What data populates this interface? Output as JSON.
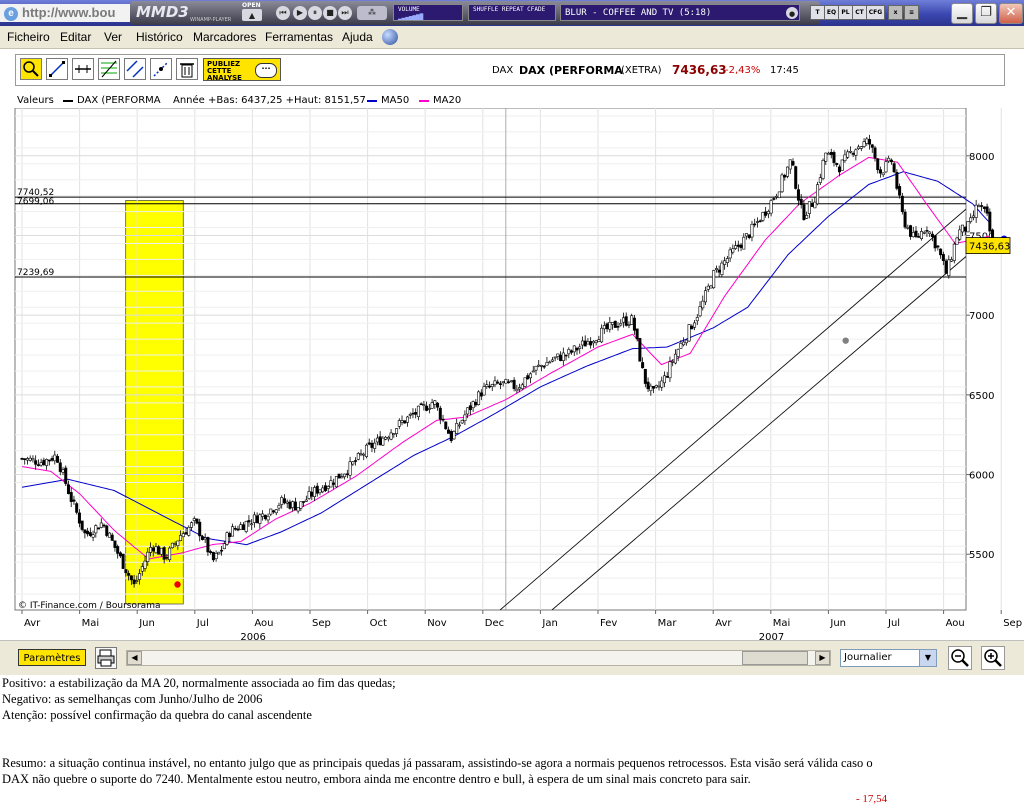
{
  "window": {
    "address": "http://www.bou"
  },
  "player": {
    "logo": "MMD3",
    "sublabel": "WINAMP-PLAYER",
    "open_label": "OPEN",
    "volume_label": "VOLUME",
    "modes_label": "SHUFFLE REPEAT CFADE",
    "track": "BLUR - COFFEE AND TV (5:18)",
    "small_buttons": [
      "T",
      "EQ",
      "PL",
      "CT",
      "CFG"
    ],
    "colors": {
      "display_bg": "#2b1a70",
      "frame": "#3a3a48"
    }
  },
  "menu": {
    "items": [
      "Ficheiro",
      "Editar",
      "Ver",
      "Histórico",
      "Marcadores",
      "Ferramentas",
      "Ajuda"
    ]
  },
  "toolbar": {
    "tool_icons": [
      "zoom-select-icon",
      "trend-line-icon",
      "horizontal-line-icon",
      "fibonacci-icon",
      "channel-icon",
      "parallel-line-icon",
      "trash-icon"
    ],
    "publiez_label": "PUBLIEZ CETTE ANALYSE",
    "ticker_code": "DAX",
    "ticker_name": "DAX (PERFORMA",
    "exchange": "(XETRA)",
    "price": "7436,63",
    "change": "-2,43%",
    "time": "17:45",
    "colors": {
      "price": "#8b0000",
      "change": "#cc0000",
      "publiez": "#ffe400"
    }
  },
  "legend": {
    "valeurs_label": "Valeurs",
    "main_series": "DAX (PERFORMA",
    "stats": "Année +Bas: 6437,25 +Haut: 8151,57",
    "ma50": "MA50",
    "ma20": "MA20",
    "colors": {
      "main": "#000000",
      "ma50": "#0000cc",
      "ma20": "#ff00cc"
    }
  },
  "chart_data": {
    "type": "candlestick",
    "instrument": "DAX (PERFORMA",
    "y_ticks": [
      "5500",
      "6000",
      "6500",
      "7000",
      "7500",
      "8000"
    ],
    "ylim": [
      5150,
      8300
    ],
    "x_ticks": [
      "Avr",
      "Mai",
      "Jun",
      "Jul",
      "Aou",
      "Sep",
      "Oct",
      "Nov",
      "Dec",
      "Jan",
      "Fev",
      "Mar",
      "Avr",
      "Mai",
      "Jun",
      "Jul",
      "Aou",
      "Sep"
    ],
    "year_labels": [
      {
        "label": "2006",
        "month_index": 4
      },
      {
        "label": "2007",
        "month_index": 13
      }
    ],
    "price_path": [
      {
        "m": 0.0,
        "v": 6100
      },
      {
        "m": 0.35,
        "v": 6080
      },
      {
        "m": 0.6,
        "v": 6120
      },
      {
        "m": 0.85,
        "v": 5850
      },
      {
        "m": 1.1,
        "v": 5620
      },
      {
        "m": 1.4,
        "v": 5700
      },
      {
        "m": 1.7,
        "v": 5480
      },
      {
        "m": 1.95,
        "v": 5300
      },
      {
        "m": 2.25,
        "v": 5560
      },
      {
        "m": 2.5,
        "v": 5480
      },
      {
        "m": 2.75,
        "v": 5620
      },
      {
        "m": 3.0,
        "v": 5700
      },
      {
        "m": 3.2,
        "v": 5560
      },
      {
        "m": 3.3,
        "v": 5450
      },
      {
        "m": 3.45,
        "v": 5520
      },
      {
        "m": 3.6,
        "v": 5640
      },
      {
        "m": 3.9,
        "v": 5700
      },
      {
        "m": 4.2,
        "v": 5750
      },
      {
        "m": 4.5,
        "v": 5830
      },
      {
        "m": 4.8,
        "v": 5800
      },
      {
        "m": 5.1,
        "v": 5900
      },
      {
        "m": 5.4,
        "v": 5960
      },
      {
        "m": 5.7,
        "v": 6050
      },
      {
        "m": 6.0,
        "v": 6160
      },
      {
        "m": 6.3,
        "v": 6240
      },
      {
        "m": 6.6,
        "v": 6330
      },
      {
        "m": 6.9,
        "v": 6400
      },
      {
        "m": 7.15,
        "v": 6460
      },
      {
        "m": 7.45,
        "v": 6230
      },
      {
        "m": 7.7,
        "v": 6380
      },
      {
        "m": 8.0,
        "v": 6530
      },
      {
        "m": 8.3,
        "v": 6570
      },
      {
        "m": 8.6,
        "v": 6550
      },
      {
        "m": 8.9,
        "v": 6660
      },
      {
        "m": 9.2,
        "v": 6720
      },
      {
        "m": 9.5,
        "v": 6760
      },
      {
        "m": 9.8,
        "v": 6830
      },
      {
        "m": 10.1,
        "v": 6900
      },
      {
        "m": 10.4,
        "v": 6960
      },
      {
        "m": 10.6,
        "v": 6970
      },
      {
        "m": 10.8,
        "v": 6600
      },
      {
        "m": 10.95,
        "v": 6500
      },
      {
        "m": 11.15,
        "v": 6600
      },
      {
        "m": 11.35,
        "v": 6760
      },
      {
        "m": 11.6,
        "v": 6920
      },
      {
        "m": 11.8,
        "v": 7060
      },
      {
        "m": 12.0,
        "v": 7250
      },
      {
        "m": 12.3,
        "v": 7380
      },
      {
        "m": 12.6,
        "v": 7500
      },
      {
        "m": 12.9,
        "v": 7650
      },
      {
        "m": 13.1,
        "v": 7770
      },
      {
        "m": 13.35,
        "v": 7970
      },
      {
        "m": 13.55,
        "v": 7620
      },
      {
        "m": 13.75,
        "v": 7720
      },
      {
        "m": 13.95,
        "v": 8020
      },
      {
        "m": 14.2,
        "v": 7930
      },
      {
        "m": 14.45,
        "v": 8050
      },
      {
        "m": 14.7,
        "v": 8090
      },
      {
        "m": 14.9,
        "v": 7900
      },
      {
        "m": 15.1,
        "v": 7970
      },
      {
        "m": 15.3,
        "v": 7600
      },
      {
        "m": 15.5,
        "v": 7470
      },
      {
        "m": 15.7,
        "v": 7560
      },
      {
        "m": 15.9,
        "v": 7420
      },
      {
        "m": 16.05,
        "v": 7260
      },
      {
        "m": 16.25,
        "v": 7520
      },
      {
        "m": 16.45,
        "v": 7560
      },
      {
        "m": 16.6,
        "v": 7700
      },
      {
        "m": 16.75,
        "v": 7620
      },
      {
        "m": 16.85,
        "v": 7440
      }
    ],
    "ma50_path": [
      {
        "m": 0.0,
        "v": 5920
      },
      {
        "m": 0.8,
        "v": 5970
      },
      {
        "m": 1.6,
        "v": 5900
      },
      {
        "m": 2.4,
        "v": 5750
      },
      {
        "m": 3.2,
        "v": 5600
      },
      {
        "m": 3.9,
        "v": 5560
      },
      {
        "m": 4.5,
        "v": 5640
      },
      {
        "m": 5.2,
        "v": 5760
      },
      {
        "m": 6.0,
        "v": 5940
      },
      {
        "m": 6.8,
        "v": 6120
      },
      {
        "m": 7.5,
        "v": 6240
      },
      {
        "m": 8.2,
        "v": 6380
      },
      {
        "m": 9.0,
        "v": 6550
      },
      {
        "m": 9.8,
        "v": 6680
      },
      {
        "m": 10.6,
        "v": 6790
      },
      {
        "m": 11.2,
        "v": 6800
      },
      {
        "m": 12.0,
        "v": 6920
      },
      {
        "m": 12.6,
        "v": 7050
      },
      {
        "m": 13.3,
        "v": 7380
      },
      {
        "m": 14.0,
        "v": 7620
      },
      {
        "m": 14.7,
        "v": 7820
      },
      {
        "m": 15.3,
        "v": 7900
      },
      {
        "m": 15.9,
        "v": 7840
      },
      {
        "m": 16.5,
        "v": 7700
      },
      {
        "m": 16.85,
        "v": 7560
      }
    ],
    "ma20_path": [
      {
        "m": 0.0,
        "v": 6050
      },
      {
        "m": 0.5,
        "v": 6020
      },
      {
        "m": 1.0,
        "v": 5880
      },
      {
        "m": 1.6,
        "v": 5650
      },
      {
        "m": 2.2,
        "v": 5470
      },
      {
        "m": 2.8,
        "v": 5510
      },
      {
        "m": 3.3,
        "v": 5560
      },
      {
        "m": 3.8,
        "v": 5580
      },
      {
        "m": 4.4,
        "v": 5720
      },
      {
        "m": 5.0,
        "v": 5820
      },
      {
        "m": 5.8,
        "v": 5990
      },
      {
        "m": 6.6,
        "v": 6200
      },
      {
        "m": 7.2,
        "v": 6340
      },
      {
        "m": 7.7,
        "v": 6360
      },
      {
        "m": 8.4,
        "v": 6470
      },
      {
        "m": 9.2,
        "v": 6640
      },
      {
        "m": 10.0,
        "v": 6800
      },
      {
        "m": 10.6,
        "v": 6880
      },
      {
        "m": 11.1,
        "v": 6690
      },
      {
        "m": 11.6,
        "v": 6760
      },
      {
        "m": 12.2,
        "v": 7120
      },
      {
        "m": 12.9,
        "v": 7470
      },
      {
        "m": 13.5,
        "v": 7700
      },
      {
        "m": 14.2,
        "v": 7880
      },
      {
        "m": 14.7,
        "v": 7990
      },
      {
        "m": 15.2,
        "v": 7960
      },
      {
        "m": 15.7,
        "v": 7700
      },
      {
        "m": 16.2,
        "v": 7450
      },
      {
        "m": 16.6,
        "v": 7480
      },
      {
        "m": 16.85,
        "v": 7500
      }
    ],
    "horizontal_lines": [
      {
        "value": 7740.52,
        "label": "7740,52"
      },
      {
        "value": 7699.06,
        "label": "7699,06"
      },
      {
        "value": 7239.69,
        "label": "7239,69"
      }
    ],
    "last_price_label": "7436,63",
    "highlight_range_months": [
      1.8,
      2.8
    ],
    "highlight_color": "#ffff00",
    "channel_lines": [
      {
        "from": {
          "m": 8.3,
          "v": 5150
        },
        "to": {
          "m": 17.4,
          "v": 7980
        }
      },
      {
        "from": {
          "m": 9.2,
          "v": 5150
        },
        "to": {
          "m": 17.4,
          "v": 7680
        }
      }
    ],
    "vertical_marker_month": 8.4,
    "markers": [
      {
        "m": 2.7,
        "v": 5310,
        "color": "#ee0000"
      },
      {
        "m": 14.3,
        "v": 6840,
        "color": "#808080"
      },
      {
        "m": 17.05,
        "v": 7480,
        "color": "#0000ee"
      }
    ],
    "copyright": "© IT-Finance.com / Boursorama"
  },
  "bottom": {
    "params_label": "Paramètres",
    "period_value": "Journalier"
  },
  "text": {
    "lines": [
      "Positivo: a estabilização da MA 20, normalmente associada ao fim das quedas;",
      "Negativo: as semelhanças com Junho/Julho de 2006",
      "Atenção: possível confirmação da quebra do canal ascendente"
    ],
    "summary_1": "Resumo: a situação continua instável, no entanto julgo que as principais quedas já passaram, assistindo-se agora a normais pequenos retrocessos. Esta visão será válida caso o",
    "summary_2": "DAX não quebre o suporte do 7240. Mentalmente estou neutro, embora ainda me encontre dentro e bull, à espera de um sinal mais concreto para sair.",
    "footer_value": "- 17,54",
    "footer_color": "#cc0000"
  }
}
